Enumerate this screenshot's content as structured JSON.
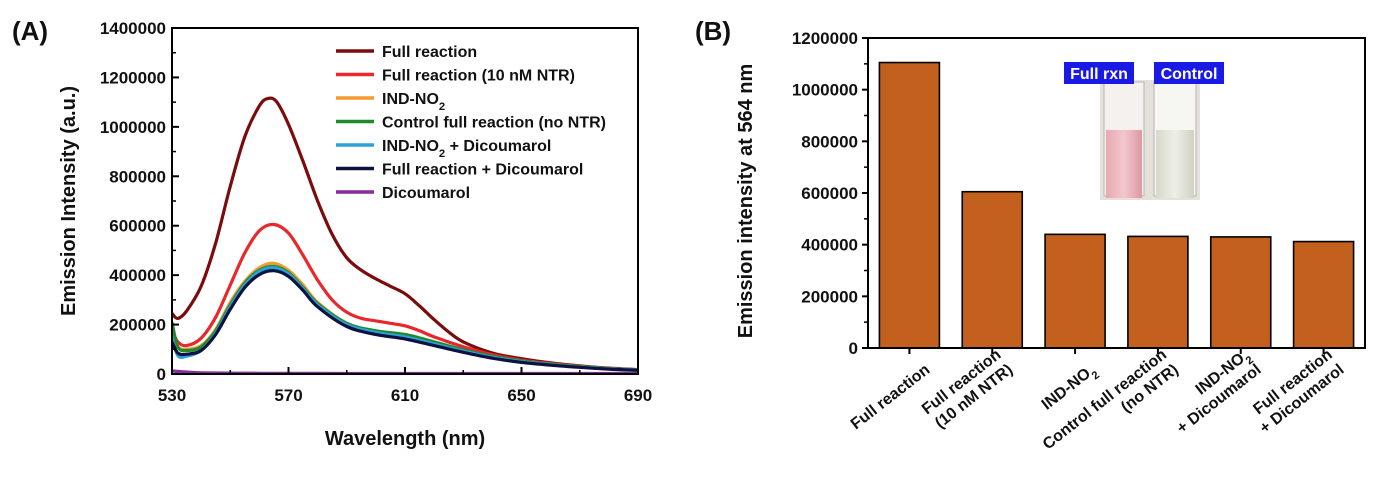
{
  "chart_data": [
    {
      "panel_label": "(A)",
      "type": "line",
      "xlabel": "Wavelength (nm)",
      "ylabel": "Emission Intensity (a.u.)",
      "xlim": [
        530,
        690
      ],
      "ylim": [
        0,
        1400000
      ],
      "xticks": [
        "530",
        "570",
        "610",
        "650",
        "690"
      ],
      "yticks": [
        "0",
        "200000",
        "400000",
        "600000",
        "800000",
        "1000000",
        "1200000",
        "1400000"
      ],
      "grid": false,
      "legend_position": "top-right",
      "series": [
        {
          "name": "Full reaction",
          "color": "#7b0c0c",
          "x": [
            530,
            532,
            535,
            540,
            545,
            550,
            555,
            560,
            563,
            566,
            570,
            575,
            580,
            585,
            590,
            595,
            600,
            605,
            610,
            615,
            620,
            625,
            630,
            640,
            650,
            660,
            670,
            680,
            690
          ],
          "y": [
            245000,
            225000,
            255000,
            355000,
            530000,
            760000,
            960000,
            1085000,
            1115000,
            1100000,
            1010000,
            860000,
            700000,
            565000,
            470000,
            420000,
            385000,
            355000,
            325000,
            275000,
            220000,
            170000,
            130000,
            85000,
            62000,
            45000,
            33000,
            24000,
            18000
          ]
        },
        {
          "name": "Full reaction (10 nM NTR)",
          "color": "#e8282b",
          "x": [
            530,
            532,
            535,
            540,
            545,
            550,
            555,
            560,
            565,
            570,
            575,
            580,
            585,
            590,
            595,
            600,
            605,
            610,
            615,
            620,
            630,
            640,
            650,
            660,
            670,
            680,
            690
          ],
          "y": [
            175000,
            130000,
            115000,
            145000,
            230000,
            360000,
            490000,
            580000,
            605000,
            570000,
            480000,
            380000,
            300000,
            250000,
            225000,
            215000,
            205000,
            195000,
            175000,
            150000,
            110000,
            78000,
            56000,
            42000,
            31000,
            22000,
            16000
          ]
        },
        {
          "name": "IND-NO<sub>2</sub>",
          "color": "#f59a2e",
          "x": [
            530,
            532,
            535,
            540,
            545,
            550,
            555,
            560,
            565,
            570,
            575,
            580,
            590,
            600,
            610,
            620,
            630,
            640,
            650,
            660,
            670,
            680,
            690
          ],
          "y": [
            165000,
            110000,
            100000,
            115000,
            180000,
            290000,
            375000,
            430000,
            448000,
            420000,
            360000,
            290000,
            205000,
            170000,
            150000,
            125000,
            95000,
            70000,
            52000,
            40000,
            30000,
            22000,
            16000
          ]
        },
        {
          "name": "Control full reaction (no NTR)",
          "color": "#1f8a2a",
          "x": [
            530,
            532,
            535,
            540,
            545,
            550,
            555,
            560,
            565,
            570,
            575,
            580,
            590,
            600,
            610,
            620,
            630,
            640,
            650,
            660,
            670,
            680,
            690
          ],
          "y": [
            210000,
            110000,
            95000,
            110000,
            175000,
            280000,
            368000,
            420000,
            435000,
            410000,
            350000,
            285000,
            205000,
            175000,
            160000,
            130000,
            98000,
            72000,
            53000,
            40000,
            30000,
            22000,
            16000
          ]
        },
        {
          "name": "IND-NO<sub>2</sub> + Dicoumarol",
          "color": "#2aa3d6",
          "x": [
            530,
            532,
            535,
            540,
            545,
            550,
            555,
            560,
            565,
            570,
            575,
            580,
            590,
            600,
            610,
            620,
            630,
            640,
            650,
            660,
            670,
            680,
            690
          ],
          "y": [
            150000,
            75000,
            72000,
            95000,
            165000,
            272000,
            360000,
            415000,
            430000,
            405000,
            345000,
            280000,
            200000,
            168000,
            150000,
            122000,
            93000,
            68000,
            50000,
            38000,
            28000,
            21000,
            15000
          ]
        },
        {
          "name": "Full reaction + Dicoumarol",
          "color": "#0d1240",
          "x": [
            530,
            532,
            535,
            540,
            545,
            550,
            555,
            560,
            565,
            570,
            575,
            580,
            590,
            600,
            610,
            620,
            630,
            640,
            650,
            660,
            670,
            680,
            690
          ],
          "y": [
            130000,
            85000,
            80000,
            95000,
            160000,
            262000,
            350000,
            402000,
            418000,
            395000,
            338000,
            272000,
            192000,
            160000,
            142000,
            115000,
            88000,
            64000,
            47000,
            36000,
            27000,
            20000,
            15000
          ]
        },
        {
          "name": "Dicoumarol",
          "color": "#8a2a9e",
          "x": [
            530,
            540,
            560,
            580,
            600,
            620,
            640,
            660,
            690
          ],
          "y": [
            12000,
            5000,
            3000,
            2500,
            2000,
            2000,
            2000,
            2000,
            2000
          ]
        }
      ]
    },
    {
      "panel_label": "(B)",
      "type": "bar",
      "ylabel": "Emission intensity at 564 nm",
      "ylim": [
        0,
        1200000
      ],
      "yticks": [
        "0",
        "200000",
        "400000",
        "600000",
        "800000",
        "1000000",
        "1200000"
      ],
      "bar_color": "#c4601d",
      "categories": [
        [
          "Full reaction"
        ],
        [
          "Full reaction",
          "(10 nM NTR)"
        ],
        [
          "IND-NO<sub>2</sub>"
        ],
        [
          "Control full reaction",
          "(no NTR)"
        ],
        [
          "IND-NO<sub>2</sub>",
          "+ Dicoumarol"
        ],
        [
          "Full reaction",
          "+ Dicoumarol"
        ]
      ],
      "values": [
        1105000,
        605000,
        440000,
        432000,
        430000,
        412000
      ],
      "inset": {
        "labels": [
          "Full rxn",
          "Control"
        ],
        "label_bg": "#1a1ae6"
      }
    }
  ]
}
